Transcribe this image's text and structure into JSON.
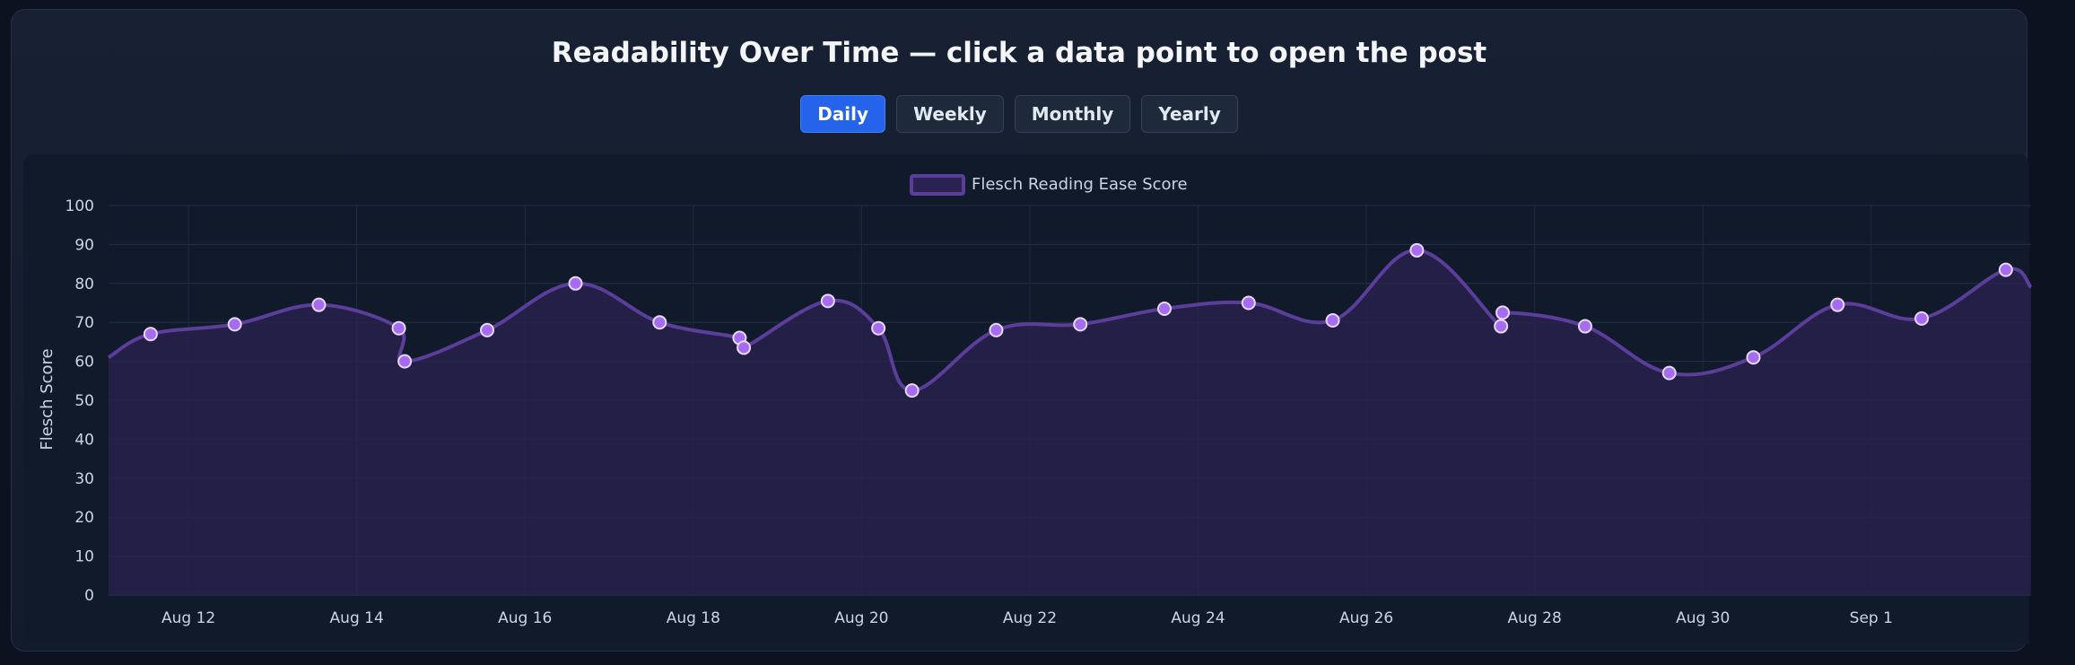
{
  "title": "Readability Over Time — click a data point to open the post",
  "range_tabs": [
    {
      "label": "Daily",
      "active": true
    },
    {
      "label": "Weekly",
      "active": false
    },
    {
      "label": "Monthly",
      "active": false
    },
    {
      "label": "Yearly",
      "active": false
    }
  ],
  "colors": {
    "line": "#5b3d9a",
    "point_fill": "#a66bf0",
    "point_stroke": "#e5d9ff",
    "area": "#2a2250",
    "active_tab": "#2563eb"
  },
  "chart_data": {
    "type": "line",
    "title": "",
    "xlabel": "",
    "ylabel": "Flesch Score",
    "ylim": [
      0,
      100
    ],
    "yticks": [
      0,
      10,
      20,
      30,
      40,
      50,
      60,
      70,
      80,
      90,
      100
    ],
    "xlim": [
      11.05,
      33.9
    ],
    "x_ticks": [
      {
        "value": 12,
        "label": "Aug 12"
      },
      {
        "value": 14,
        "label": "Aug 14"
      },
      {
        "value": 16,
        "label": "Aug 16"
      },
      {
        "value": 18,
        "label": "Aug 18"
      },
      {
        "value": 20,
        "label": "Aug 20"
      },
      {
        "value": 22,
        "label": "Aug 22"
      },
      {
        "value": 24,
        "label": "Aug 24"
      },
      {
        "value": 26,
        "label": "Aug 26"
      },
      {
        "value": 28,
        "label": "Aug 28"
      },
      {
        "value": 30,
        "label": "Aug 30"
      },
      {
        "value": 32,
        "label": "Sep 1"
      }
    ],
    "grid": true,
    "legend": "top-center",
    "series": [
      {
        "name": "Flesch Reading Ease Score",
        "filled": true,
        "start": {
          "x": 11.05,
          "y": 61
        },
        "end": {
          "x": 33.9,
          "y": 79
        },
        "points": [
          {
            "x": 11.55,
            "y": 67
          },
          {
            "x": 12.55,
            "y": 69.5
          },
          {
            "x": 13.55,
            "y": 74.5
          },
          {
            "x": 14.5,
            "y": 68.5
          },
          {
            "x": 14.57,
            "y": 60
          },
          {
            "x": 15.55,
            "y": 68
          },
          {
            "x": 16.6,
            "y": 80
          },
          {
            "x": 17.6,
            "y": 70
          },
          {
            "x": 18.55,
            "y": 66
          },
          {
            "x": 18.6,
            "y": 63.5
          },
          {
            "x": 19.6,
            "y": 75.5
          },
          {
            "x": 20.2,
            "y": 68.5
          },
          {
            "x": 20.6,
            "y": 52.5
          },
          {
            "x": 21.6,
            "y": 68
          },
          {
            "x": 22.6,
            "y": 69.5
          },
          {
            "x": 23.6,
            "y": 73.5
          },
          {
            "x": 24.6,
            "y": 75
          },
          {
            "x": 25.6,
            "y": 70.5
          },
          {
            "x": 26.6,
            "y": 88.5
          },
          {
            "x": 27.6,
            "y": 69
          },
          {
            "x": 27.62,
            "y": 72.5
          },
          {
            "x": 28.6,
            "y": 69
          },
          {
            "x": 29.6,
            "y": 57
          },
          {
            "x": 30.6,
            "y": 61
          },
          {
            "x": 31.6,
            "y": 74.5
          },
          {
            "x": 32.6,
            "y": 71
          },
          {
            "x": 33.6,
            "y": 83.5
          }
        ]
      }
    ]
  }
}
